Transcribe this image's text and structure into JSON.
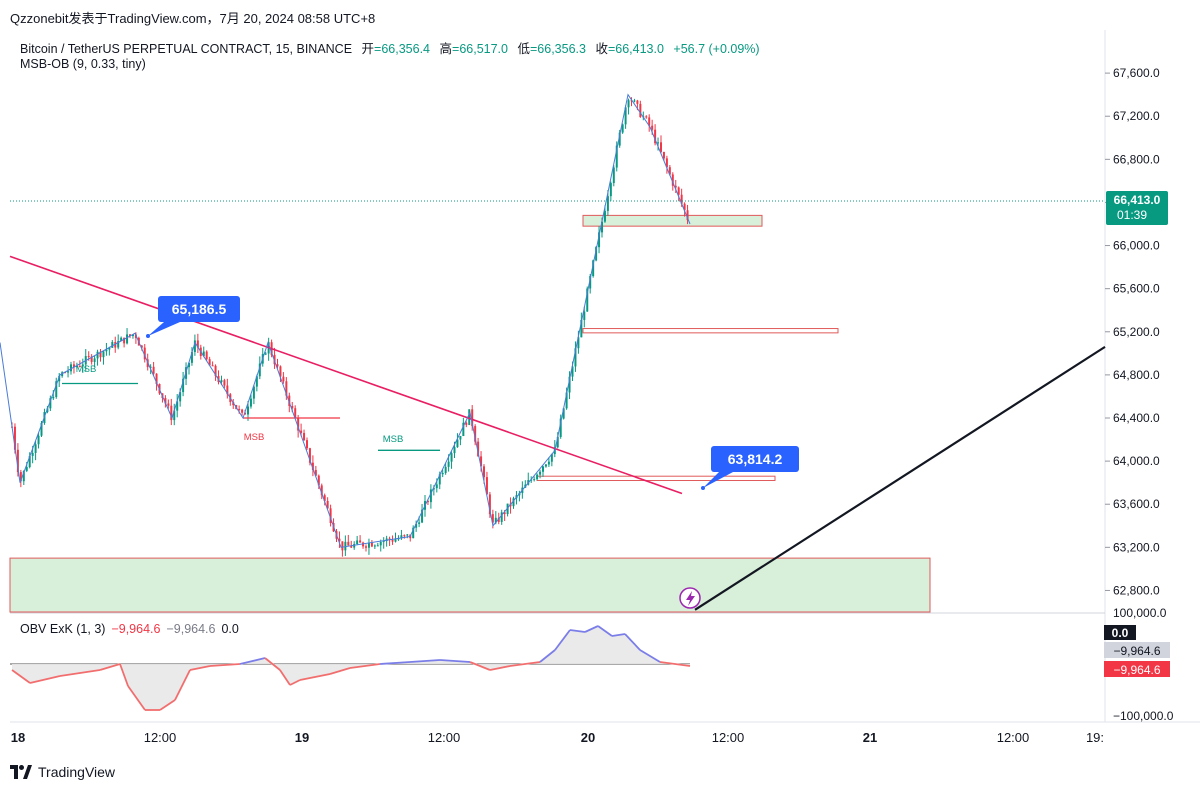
{
  "header": {
    "text": "Qzzonebit发表于TradingView.com，7月 20, 2024 08:58 UTC+8"
  },
  "symbol": {
    "name": "Bitcoin / TetherUS PERPETUAL CONTRACT, 15, BINANCE",
    "open_label": "开",
    "open": "=66,356.4",
    "high_label": "高",
    "high": "=66,517.0",
    "low_label": "低",
    "low": "=66,356.3",
    "close_label": "收",
    "close": "=66,413.0",
    "change": "+56.7 (+0.09%)"
  },
  "indicator": {
    "label": "MSB-OB (9, 0.33, tiny)"
  },
  "obv": {
    "label": "OBV ExK (1, 3)",
    "v1": "−9,964.6",
    "v2": "−9,964.6",
    "v3": "0.0"
  },
  "brand": {
    "name": "TradingView"
  },
  "colors": {
    "up": "#089981",
    "down": "#f23645",
    "trend": "#e91e63",
    "zigzag": "#4a7bd8",
    "obv_up": "#7b7ee8",
    "obv_down": "#f26e6e",
    "label_blue": "#2962ff"
  },
  "chart_data": {
    "type": "candlestick",
    "title": "Bitcoin / TetherUS PERPETUAL CONTRACT, 15, BINANCE",
    "ylim": [
      62600,
      68000
    ],
    "y_ticks": [
      "67,600.0",
      "67,200.0",
      "66,800.0",
      "66,400.0",
      "66,000.0",
      "65,600.0",
      "65,200.0",
      "64,800.0",
      "64,400.0",
      "64,000.0",
      "63,600.0",
      "63,200.0",
      "62,800.0"
    ],
    "x_ticks": [
      "18",
      "12:00",
      "19",
      "12:00",
      "20",
      "12:00",
      "21",
      "12:00",
      "19:"
    ],
    "current_price": "66,413.0",
    "countdown": "01:39",
    "zigzag": [
      [
        0,
        65100
      ],
      [
        20,
        63800
      ],
      [
        60,
        64800
      ],
      [
        135,
        65186.5
      ],
      [
        172,
        64400
      ],
      [
        195,
        65100
      ],
      [
        243,
        64400
      ],
      [
        268,
        65100
      ],
      [
        341,
        63200
      ],
      [
        410,
        63300
      ],
      [
        470,
        64450
      ],
      [
        493,
        63400
      ],
      [
        555,
        64100
      ],
      [
        628,
        67400
      ],
      [
        650,
        67100
      ],
      [
        690,
        66200
      ]
    ],
    "swing_labels": [
      {
        "text": "65,186.5",
        "value": 65186.5
      },
      {
        "text": "63,814.2",
        "value": 63814.2
      }
    ],
    "msb_labels": [
      {
        "text": "MSB",
        "color": "#089981",
        "value": 64720
      },
      {
        "text": "MSB",
        "color": "#f23645",
        "value": 64250
      },
      {
        "text": "MSB",
        "color": "#089981",
        "value": 64100
      }
    ],
    "msb_levels": [
      {
        "x1": 62,
        "x2": 138,
        "value": 64720,
        "color": "#089981"
      },
      {
        "x1": 243,
        "x2": 340,
        "value": 64400,
        "color": "#f23645"
      },
      {
        "x1": 378,
        "x2": 440,
        "value": 64100,
        "color": "#089981"
      }
    ],
    "order_blocks": [
      {
        "x1": 583,
        "x2": 762,
        "top": 66280,
        "bottom": 66180,
        "fill": "#d8efd9",
        "stroke": "#e05a5a"
      },
      {
        "x1": 583,
        "x2": 838,
        "top": 65230,
        "bottom": 65190,
        "fill": "#ffffff",
        "stroke": "#e05a5a"
      },
      {
        "x1": 537,
        "x2": 775,
        "top": 63860,
        "bottom": 63820,
        "fill": "#ffffff",
        "stroke": "#e05a5a"
      },
      {
        "x1": 10,
        "x2": 930,
        "top": 63100,
        "bottom": 62600,
        "fill": "#d8efd9",
        "stroke": "#e05a5a"
      }
    ],
    "trendline": {
      "x1": 10,
      "y1": 65900,
      "x2": 682,
      "y2": 63700
    },
    "black_line": {
      "x1": 695,
      "y1": 62620,
      "x2": 1105,
      "y2": 65060
    },
    "obv_scale": {
      "ticks": [
        "100,000.0",
        "0.0",
        "−9,964.6",
        "−9,964.6",
        "−100,000.0"
      ]
    }
  }
}
